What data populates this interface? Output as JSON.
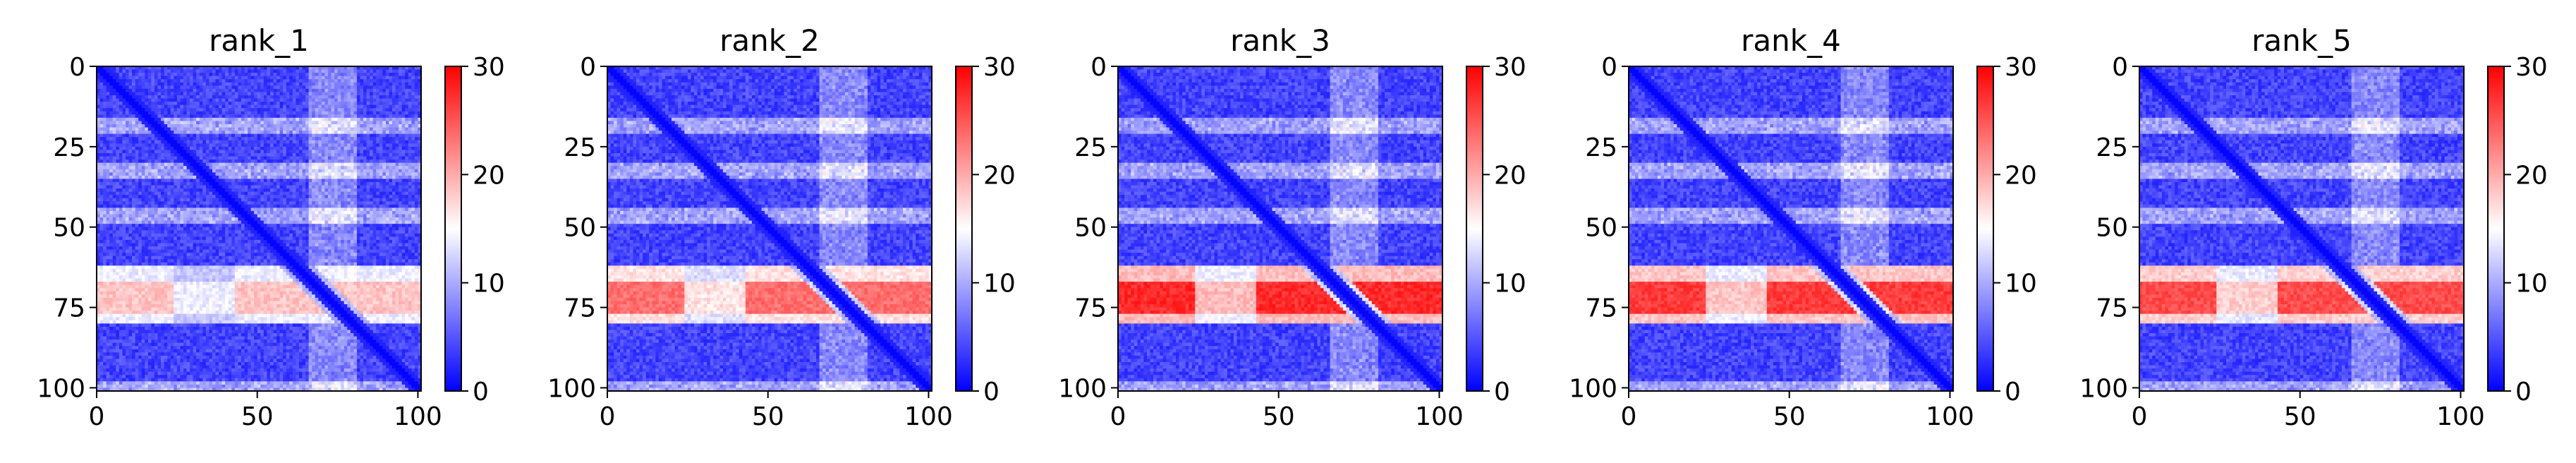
{
  "chart_data": [
    {
      "type": "heatmap",
      "title": "rank_1",
      "x_ticks": [
        0,
        50,
        100
      ],
      "y_ticks": [
        0,
        25,
        50,
        75,
        100
      ],
      "xlim": [
        0,
        101
      ],
      "ylim": [
        101,
        0
      ],
      "colorbar": {
        "ticks": [
          0,
          10,
          20,
          30
        ],
        "range": [
          0,
          30
        ],
        "colormap": [
          "#0000ff",
          "#ffffff",
          "#ff0000"
        ]
      },
      "bands": {
        "high_rows": [
          62,
          79
        ],
        "high_peak": 17,
        "light_rows": [
          [
            16,
            20
          ],
          [
            30,
            34
          ],
          [
            44,
            48
          ],
          [
            98,
            101
          ]
        ],
        "light_cols": [
          [
            66,
            80
          ]
        ],
        "diagonal": "low"
      }
    },
    {
      "type": "heatmap",
      "title": "rank_2",
      "x_ticks": [
        0,
        50,
        100
      ],
      "y_ticks": [
        0,
        25,
        50,
        75,
        100
      ],
      "xlim": [
        0,
        101
      ],
      "ylim": [
        101,
        0
      ],
      "colorbar": {
        "ticks": [
          0,
          10,
          20,
          30
        ],
        "range": [
          0,
          30
        ],
        "colormap": [
          "#0000ff",
          "#ffffff",
          "#ff0000"
        ]
      },
      "bands": {
        "high_rows": [
          62,
          79
        ],
        "high_peak": 22,
        "light_rows": [
          [
            16,
            20
          ],
          [
            30,
            34
          ],
          [
            44,
            48
          ],
          [
            98,
            101
          ]
        ],
        "light_cols": [
          [
            66,
            80
          ]
        ],
        "diagonal": "low"
      }
    },
    {
      "type": "heatmap",
      "title": "rank_3",
      "x_ticks": [
        0,
        50,
        100
      ],
      "y_ticks": [
        0,
        25,
        50,
        75,
        100
      ],
      "xlim": [
        0,
        101
      ],
      "ylim": [
        101,
        0
      ],
      "colorbar": {
        "ticks": [
          0,
          10,
          20,
          30
        ],
        "range": [
          0,
          30
        ],
        "colormap": [
          "#0000ff",
          "#ffffff",
          "#ff0000"
        ]
      },
      "bands": {
        "high_rows": [
          62,
          79
        ],
        "high_peak": 26,
        "light_rows": [
          [
            16,
            20
          ],
          [
            30,
            34
          ],
          [
            44,
            48
          ],
          [
            98,
            101
          ]
        ],
        "light_cols": [
          [
            66,
            80
          ]
        ],
        "diagonal": "low"
      }
    },
    {
      "type": "heatmap",
      "title": "rank_4",
      "x_ticks": [
        0,
        50,
        100
      ],
      "y_ticks": [
        0,
        25,
        50,
        75,
        100
      ],
      "xlim": [
        0,
        101
      ],
      "ylim": [
        101,
        0
      ],
      "colorbar": {
        "ticks": [
          0,
          10,
          20,
          30
        ],
        "range": [
          0,
          30
        ],
        "colormap": [
          "#0000ff",
          "#ffffff",
          "#ff0000"
        ]
      },
      "bands": {
        "high_rows": [
          62,
          79
        ],
        "high_peak": 25,
        "light_rows": [
          [
            16,
            20
          ],
          [
            30,
            34
          ],
          [
            44,
            48
          ],
          [
            98,
            101
          ]
        ],
        "light_cols": [
          [
            66,
            80
          ]
        ],
        "diagonal": "low"
      }
    },
    {
      "type": "heatmap",
      "title": "rank_5",
      "x_ticks": [
        0,
        50,
        100
      ],
      "y_ticks": [
        0,
        25,
        50,
        75,
        100
      ],
      "xlim": [
        0,
        101
      ],
      "ylim": [
        101,
        0
      ],
      "colorbar": {
        "ticks": [
          0,
          10,
          20,
          30
        ],
        "range": [
          0,
          30
        ],
        "colormap": [
          "#0000ff",
          "#ffffff",
          "#ff0000"
        ]
      },
      "bands": {
        "high_rows": [
          62,
          79
        ],
        "high_peak": 24,
        "light_rows": [
          [
            16,
            20
          ],
          [
            30,
            34
          ],
          [
            44,
            48
          ],
          [
            98,
            101
          ]
        ],
        "light_cols": [
          [
            66,
            80
          ]
        ],
        "diagonal": "low"
      }
    }
  ]
}
